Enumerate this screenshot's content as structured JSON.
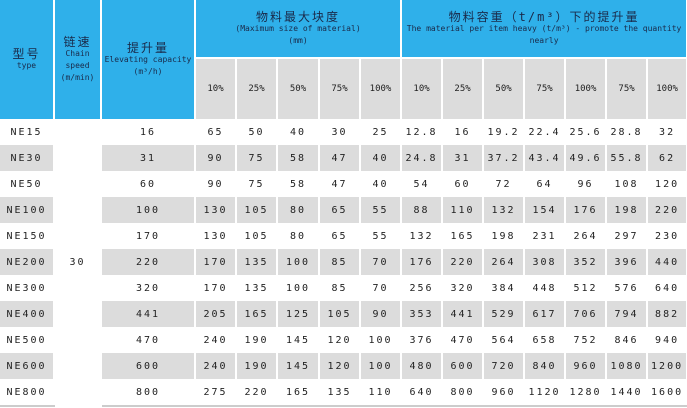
{
  "header": {
    "type_cn": "型号",
    "type_en": "type",
    "speed_cn": "链速",
    "speed_en": "Chain speed",
    "speed_unit": "(m/min)",
    "capacity_cn": "提升量",
    "capacity_en": "Elevating capacity",
    "capacity_unit": "(m³/h)",
    "size_cn": "物料最大块度",
    "size_en": "(Maximum size of material)",
    "size_unit": "(mm)",
    "weight_cn": "物料容重（t/m³）下的提升量",
    "weight_en": "The material per item heavy (t/m³) - promote the quantity nearly"
  },
  "size_cols": [
    "10%",
    "25%",
    "50%",
    "75%",
    "100%"
  ],
  "weight_cols": [
    "10%",
    "25%",
    "50%",
    "75%",
    "100%",
    "75%",
    "100%"
  ],
  "speed_value": "30",
  "rows": [
    {
      "type": "NE15",
      "cap": "16",
      "size": [
        "65",
        "50",
        "40",
        "30",
        "25"
      ],
      "w": [
        "12.8",
        "16",
        "19.2",
        "22.4",
        "25.6",
        "28.8",
        "32"
      ]
    },
    {
      "type": "NE30",
      "cap": "31",
      "size": [
        "90",
        "75",
        "58",
        "47",
        "40"
      ],
      "w": [
        "24.8",
        "31",
        "37.2",
        "43.4",
        "49.6",
        "55.8",
        "62"
      ]
    },
    {
      "type": "NE50",
      "cap": "60",
      "size": [
        "90",
        "75",
        "58",
        "47",
        "40"
      ],
      "w": [
        "54",
        "60",
        "72",
        "64",
        "96",
        "108",
        "120"
      ]
    },
    {
      "type": "NE100",
      "cap": "100",
      "size": [
        "130",
        "105",
        "80",
        "65",
        "55"
      ],
      "w": [
        "88",
        "110",
        "132",
        "154",
        "176",
        "198",
        "220"
      ]
    },
    {
      "type": "NE150",
      "cap": "170",
      "size": [
        "130",
        "105",
        "80",
        "65",
        "55"
      ],
      "w": [
        "132",
        "165",
        "198",
        "231",
        "264",
        "297",
        "230"
      ]
    },
    {
      "type": "NE200",
      "cap": "220",
      "size": [
        "170",
        "135",
        "100",
        "85",
        "70"
      ],
      "w": [
        "176",
        "220",
        "264",
        "308",
        "352",
        "396",
        "440"
      ]
    },
    {
      "type": "NE300",
      "cap": "320",
      "size": [
        "170",
        "135",
        "100",
        "85",
        "70"
      ],
      "w": [
        "256",
        "320",
        "384",
        "448",
        "512",
        "576",
        "640"
      ]
    },
    {
      "type": "NE400",
      "cap": "441",
      "size": [
        "205",
        "165",
        "125",
        "105",
        "90"
      ],
      "w": [
        "353",
        "441",
        "529",
        "617",
        "706",
        "794",
        "882"
      ]
    },
    {
      "type": "NE500",
      "cap": "470",
      "size": [
        "240",
        "190",
        "145",
        "120",
        "100"
      ],
      "w": [
        "376",
        "470",
        "564",
        "658",
        "752",
        "846",
        "940"
      ]
    },
    {
      "type": "NE600",
      "cap": "600",
      "size": [
        "240",
        "190",
        "145",
        "120",
        "100"
      ],
      "w": [
        "480",
        "600",
        "720",
        "840",
        "960",
        "1080",
        "1200"
      ]
    },
    {
      "type": "NE800",
      "cap": "800",
      "size": [
        "275",
        "220",
        "165",
        "135",
        "110"
      ],
      "w": [
        "640",
        "800",
        "960",
        "1120",
        "1280",
        "1440",
        "1600"
      ]
    }
  ],
  "colors": {
    "header": "#2fb0ea",
    "row_alt": "#dcdcdc"
  }
}
